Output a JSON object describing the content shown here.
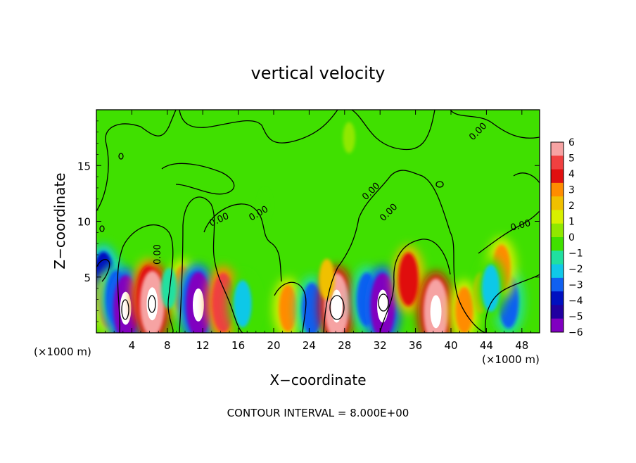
{
  "chart_data": {
    "type": "heatmap",
    "title": "vertical velocity",
    "xlabel": "X−coordinate",
    "ylabel": "Z−coordinate",
    "x_unit_label_left": "(×1000 m)",
    "x_unit_label_right": "(×1000 m)",
    "footer": "CONTOUR INTERVAL = 8.000E+00",
    "xlim": [
      0,
      50
    ],
    "ylim": [
      0,
      20
    ],
    "x_ticks": [
      4,
      8,
      12,
      16,
      20,
      24,
      28,
      32,
      36,
      40,
      44,
      48
    ],
    "y_ticks": [
      5,
      10,
      15
    ],
    "colorbar": {
      "levels": [
        6,
        5,
        4,
        3,
        2,
        1,
        0,
        -1,
        -2,
        -3,
        -4,
        -5,
        -6
      ],
      "colors": [
        "#f6a3a3",
        "#f04040",
        "#e01010",
        "#ff8c00",
        "#f0c000",
        "#d8f000",
        "#90e800",
        "#40e000",
        "#20e0a0",
        "#10c8e8",
        "#1060f0",
        "#0010c0",
        "#2000a0",
        "#8000c0"
      ]
    },
    "contour_labels": [
      "0.00",
      "0.00",
      "0.00",
      "0.00",
      "0.00",
      "0.00",
      "0.00"
    ],
    "cells": [
      {
        "x": 0.8,
        "z": 4.6,
        "value": -5
      },
      {
        "x": 1.3,
        "z": 2.6,
        "value": 3
      },
      {
        "x": 2.2,
        "z": 3.2,
        "value": -4
      },
      {
        "x": 3.3,
        "z": 2.2,
        "value": -6
      },
      {
        "x": 5.8,
        "z": 3.6,
        "value": 4
      },
      {
        "x": 6.3,
        "z": 2.6,
        "value": 6
      },
      {
        "x": 9.7,
        "z": 3.9,
        "value": 3
      },
      {
        "x": 11.0,
        "z": 3.0,
        "value": -4
      },
      {
        "x": 11.5,
        "z": 2.5,
        "value": -6
      },
      {
        "x": 14.3,
        "z": 2.7,
        "value": 5
      },
      {
        "x": 16.5,
        "z": 2.6,
        "value": -3
      },
      {
        "x": 21.6,
        "z": 2.2,
        "value": 3
      },
      {
        "x": 24.3,
        "z": 2.1,
        "value": -4
      },
      {
        "x": 27.1,
        "z": 2.4,
        "value": 6
      },
      {
        "x": 30.5,
        "z": 3.0,
        "value": -4
      },
      {
        "x": 32.3,
        "z": 2.4,
        "value": -6
      },
      {
        "x": 35.2,
        "z": 4.8,
        "value": 4
      },
      {
        "x": 38.3,
        "z": 1.9,
        "value": 6
      },
      {
        "x": 41.5,
        "z": 2.0,
        "value": 3
      },
      {
        "x": 43.4,
        "z": 3.6,
        "value": 2
      },
      {
        "x": 46.5,
        "z": 2.8,
        "value": -4
      },
      {
        "x": 45.7,
        "z": 5.8,
        "value": 3
      },
      {
        "x": 44.5,
        "z": 4.0,
        "value": -3
      },
      {
        "x": 8.2,
        "z": 4.0,
        "value": -2
      },
      {
        "x": 26.0,
        "z": 4.8,
        "value": 2
      },
      {
        "x": 28.5,
        "z": 17.5,
        "value": 0.5
      },
      {
        "x": 19.0,
        "z": 11.5,
        "value": -0.5
      }
    ]
  }
}
